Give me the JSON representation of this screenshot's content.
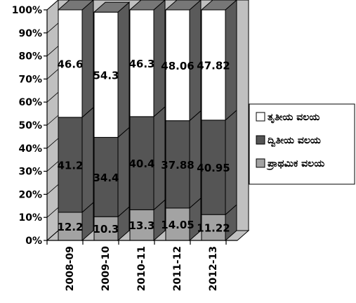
{
  "chart_data": {
    "type": "bar",
    "stacked": true,
    "three_d": true,
    "categories": [
      "2008-09",
      "2009-10",
      "2010-11",
      "2011-12",
      "2012-13"
    ],
    "series": [
      {
        "name": "ಪ್ರಾಥಮಿಕ ವಲಯ",
        "values": [
          12.2,
          10.3,
          13.3,
          14.05,
          11.22
        ],
        "labels": [
          "12.2",
          "10.3",
          "13.3",
          "14.05",
          "11.22"
        ],
        "color": "#a3a3a3"
      },
      {
        "name": "ದ್ವಿತೀಯ ವಲಯ",
        "values": [
          41.2,
          34.4,
          40.4,
          37.88,
          40.95
        ],
        "labels": [
          "41.2",
          "34.4",
          "40.4",
          "37.88",
          "40.95"
        ],
        "color": "#555555"
      },
      {
        "name": "ತೃತೀಯ ವಲಯ",
        "values": [
          46.6,
          54.3,
          46.3,
          48.06,
          47.82
        ],
        "labels": [
          "46.6",
          "54.3",
          "46.3",
          "48.06",
          "47.82"
        ],
        "color": "#ffffff"
      }
    ],
    "yticks": [
      "0%",
      "10%",
      "20%",
      "30%",
      "40%",
      "50%",
      "60%",
      "70%",
      "80%",
      "90%",
      "100%"
    ],
    "ylim": [
      0,
      100
    ],
    "title": "",
    "xlabel": "",
    "ylabel": "",
    "grid": false,
    "legend_position": "right"
  },
  "legend_order": [
    2,
    1,
    0
  ],
  "colors": {
    "back_wall": "#c0c0c0",
    "floor": "#c0c0c0",
    "top_face": "#777777",
    "axis": "#000000"
  }
}
